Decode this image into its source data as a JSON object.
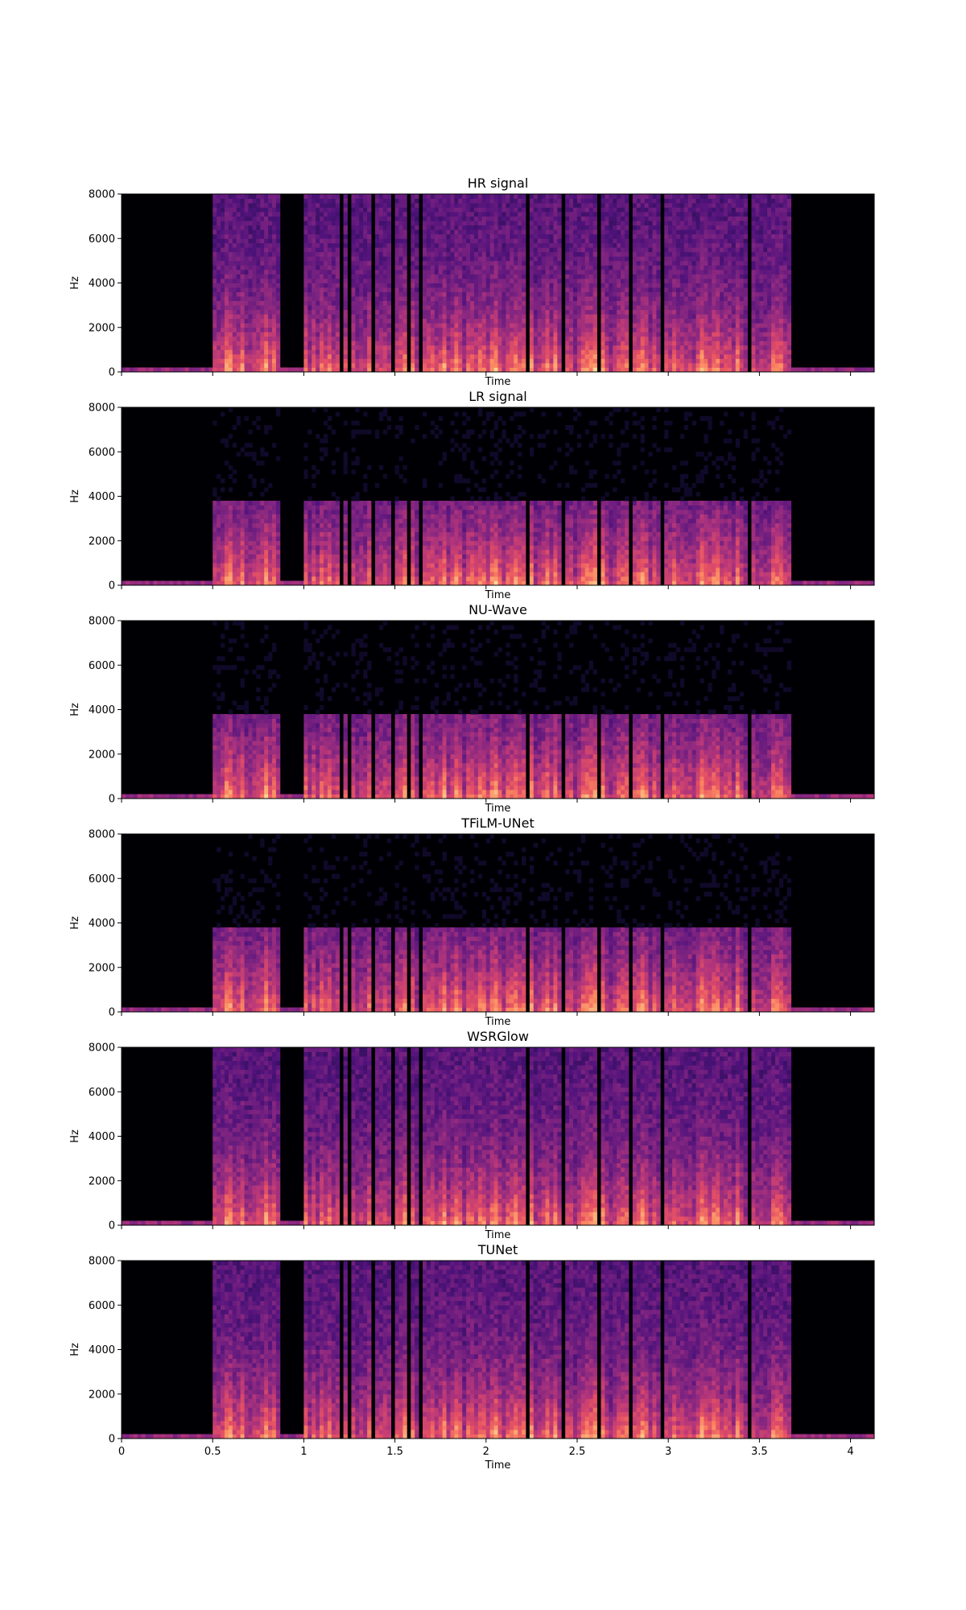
{
  "chart_data": [
    {
      "type": "heatmap",
      "title": "HR signal",
      "xlabel": "Time",
      "ylabel": "Hz",
      "xlim": [
        0,
        4.13
      ],
      "ylim": [
        0,
        8000
      ],
      "yticks": [
        0,
        2000,
        4000,
        6000,
        8000
      ],
      "xticks": [
        0,
        0.5,
        1,
        1.5,
        2,
        2.5,
        3,
        3.5,
        4
      ],
      "xtick_labels_visible": false,
      "bandwidth_hz": 8000,
      "speech_segments": [
        [
          0.5,
          0.87
        ],
        [
          1.0,
          3.68
        ]
      ],
      "colormap": "magma"
    },
    {
      "type": "heatmap",
      "title": "LR signal",
      "xlabel": "Time",
      "ylabel": "Hz",
      "xlim": [
        0,
        4.13
      ],
      "ylim": [
        0,
        8000
      ],
      "yticks": [
        0,
        2000,
        4000,
        6000,
        8000
      ],
      "xticks": [
        0,
        0.5,
        1,
        1.5,
        2,
        2.5,
        3,
        3.5,
        4
      ],
      "xtick_labels_visible": false,
      "bandwidth_hz": 3800,
      "speech_segments": [
        [
          0.5,
          0.87
        ],
        [
          1.0,
          3.68
        ]
      ],
      "colormap": "magma"
    },
    {
      "type": "heatmap",
      "title": "NU-Wave",
      "xlabel": "Time",
      "ylabel": "Hz",
      "xlim": [
        0,
        4.13
      ],
      "ylim": [
        0,
        8000
      ],
      "yticks": [
        0,
        2000,
        4000,
        6000,
        8000
      ],
      "xticks": [
        0,
        0.5,
        1,
        1.5,
        2,
        2.5,
        3,
        3.5,
        4
      ],
      "xtick_labels_visible": false,
      "bandwidth_hz": 3800,
      "speech_segments": [
        [
          0.5,
          0.87
        ],
        [
          1.0,
          3.68
        ]
      ],
      "colormap": "magma"
    },
    {
      "type": "heatmap",
      "title": "TFiLM-UNet",
      "xlabel": "Time",
      "ylabel": "Hz",
      "xlim": [
        0,
        4.13
      ],
      "ylim": [
        0,
        8000
      ],
      "yticks": [
        0,
        2000,
        4000,
        6000,
        8000
      ],
      "xticks": [
        0,
        0.5,
        1,
        1.5,
        2,
        2.5,
        3,
        3.5,
        4
      ],
      "xtick_labels_visible": false,
      "bandwidth_hz": 3800,
      "speech_segments": [
        [
          0.5,
          0.87
        ],
        [
          1.0,
          3.68
        ]
      ],
      "colormap": "magma"
    },
    {
      "type": "heatmap",
      "title": "WSRGlow",
      "xlabel": "Time",
      "ylabel": "Hz",
      "xlim": [
        0,
        4.13
      ],
      "ylim": [
        0,
        8000
      ],
      "yticks": [
        0,
        2000,
        4000,
        6000,
        8000
      ],
      "xticks": [
        0,
        0.5,
        1,
        1.5,
        2,
        2.5,
        3,
        3.5,
        4
      ],
      "xtick_labels_visible": false,
      "bandwidth_hz": 8000,
      "speech_segments": [
        [
          0.5,
          0.87
        ],
        [
          1.0,
          3.68
        ]
      ],
      "colormap": "magma"
    },
    {
      "type": "heatmap",
      "title": "TUNet",
      "xlabel": "Time",
      "ylabel": "Hz",
      "xlim": [
        0,
        4.13
      ],
      "ylim": [
        0,
        8000
      ],
      "yticks": [
        0,
        2000,
        4000,
        6000,
        8000
      ],
      "xticks": [
        0,
        0.5,
        1,
        1.5,
        2,
        2.5,
        3,
        3.5,
        4
      ],
      "xtick_labels_visible": true,
      "bandwidth_hz": 8000,
      "speech_segments": [
        [
          0.5,
          0.87
        ],
        [
          1.0,
          3.68
        ]
      ],
      "colormap": "magma"
    }
  ]
}
